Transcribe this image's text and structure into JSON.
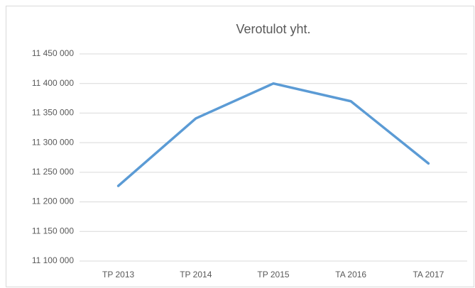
{
  "chart_data": {
    "type": "line",
    "title": "Verotulot yht.",
    "categories": [
      "TP 2013",
      "TP 2014",
      "TP 2015",
      "TA 2016",
      "TA 2017"
    ],
    "series": [
      {
        "name": "Verotulot yht.",
        "color": "#5b9bd5",
        "values": [
          11227000,
          11341000,
          11400000,
          11370000,
          11265000
        ]
      }
    ],
    "ylim": [
      11100000,
      11450000
    ],
    "yticks": [
      {
        "value": 11100000,
        "label": "11 100 000"
      },
      {
        "value": 11150000,
        "label": "11 150 000"
      },
      {
        "value": 11200000,
        "label": "11 200 000"
      },
      {
        "value": 11250000,
        "label": "11 250 000"
      },
      {
        "value": 11300000,
        "label": "11 300 000"
      },
      {
        "value": 11350000,
        "label": "11 350 000"
      },
      {
        "value": 11400000,
        "label": "11 400 000"
      },
      {
        "value": 11450000,
        "label": "11 450 000"
      }
    ],
    "grid": true
  }
}
